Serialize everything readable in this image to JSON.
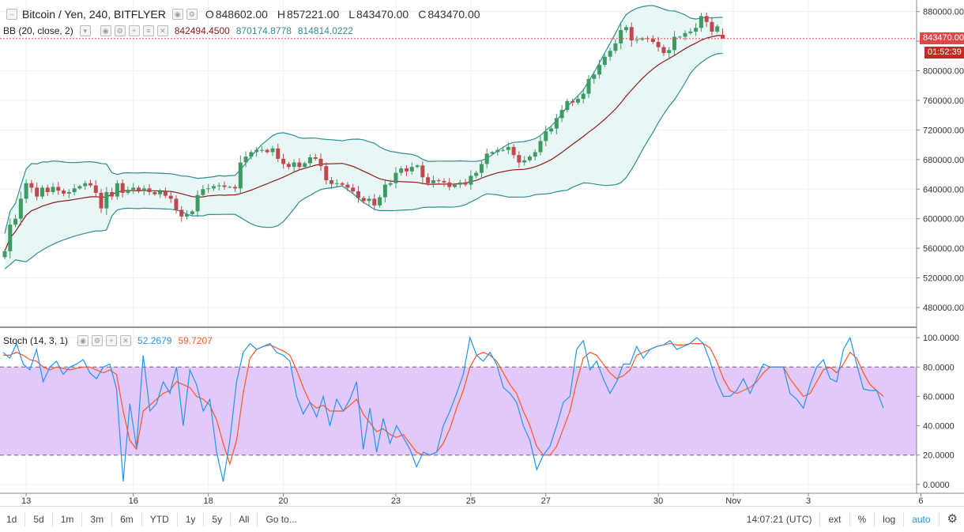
{
  "header": {
    "symbol": "Bitcoin / Yen, 240, BITFLYER",
    "ohlc": [
      {
        "k": "O",
        "v": "848602.00"
      },
      {
        "k": "H",
        "v": "857221.00"
      },
      {
        "k": "L",
        "v": "843470.00"
      },
      {
        "k": "C",
        "v": "843470.00"
      }
    ],
    "bb_label": "BB (20, close, 2)",
    "bb_values": [
      "842494.4500",
      "870174.8778",
      "814814.0222"
    ],
    "stoch_label": "Stoch (14, 3, 1)",
    "stoch_values": [
      "52.2679",
      "59.7207"
    ]
  },
  "price_tag": "843470.00",
  "countdown": "01:52:39",
  "toolbar": {
    "ranges": [
      "1d",
      "5d",
      "1m",
      "3m",
      "6m",
      "YTD",
      "1y",
      "5y",
      "All"
    ],
    "goto": "Go to...",
    "clock": "14:07:21 (UTC)",
    "options": [
      "ext",
      "%",
      "log",
      "auto"
    ]
  },
  "colors": {
    "up": "#3d9a63",
    "down": "#c0474d",
    "bb_band": "#2f8f8f",
    "bb_basis": "#8b1a1a",
    "band_fill": "#e9f6f6",
    "stoch_k": "#2196f3",
    "stoch_d": "#ff5722",
    "stoch_fill": "#e3c8fb",
    "tag_price": "#e04848",
    "tag_timer": "#c62828"
  },
  "chart_data": [
    {
      "type": "candlestick",
      "title": "Bitcoin / Yen, 240, BITFLYER",
      "ylim": [
        465000,
        885000
      ],
      "y_ticks": [
        480000,
        520000,
        560000,
        600000,
        640000,
        680000,
        720000,
        760000,
        800000,
        840000,
        880000
      ],
      "y_tick_labels": [
        "480000.00",
        "520000.00",
        "560000.00",
        "600000.00",
        "640000.00",
        "680000.00",
        "720000.00",
        "760000.00",
        "800000.00",
        "840000.00",
        "880000.00"
      ],
      "x_ticks": [
        {
          "i": 4,
          "label": "13"
        },
        {
          "i": 24,
          "label": "16"
        },
        {
          "i": 38,
          "label": "18"
        },
        {
          "i": 52,
          "label": "20"
        },
        {
          "i": 73,
          "label": "23"
        },
        {
          "i": 87,
          "label": "25"
        },
        {
          "i": 101,
          "label": "27"
        },
        {
          "i": 122,
          "label": "30"
        },
        {
          "i": 136,
          "label": "Nov"
        },
        {
          "i": 150,
          "label": "3"
        },
        {
          "i": 171,
          "label": "6"
        }
      ],
      "closes": [
        556000,
        592000,
        600000,
        627000,
        648000,
        642000,
        630000,
        642000,
        636000,
        643000,
        638000,
        634000,
        636000,
        641000,
        644000,
        648000,
        645000,
        635000,
        614000,
        636000,
        630000,
        648000,
        635000,
        639000,
        642000,
        638000,
        641000,
        636000,
        633000,
        637000,
        631000,
        627000,
        612000,
        603000,
        606000,
        610000,
        632000,
        640000,
        641000,
        644000,
        645000,
        643000,
        643000,
        641000,
        676000,
        684000,
        690000,
        693000,
        693000,
        690000,
        695000,
        681000,
        674000,
        670000,
        676000,
        670000,
        675000,
        683000,
        681000,
        671000,
        652000,
        647000,
        648000,
        646000,
        642000,
        637000,
        628000,
        624000,
        627000,
        618000,
        629000,
        646000,
        648000,
        662000,
        668000,
        664000,
        670000,
        672000,
        656000,
        648000,
        652000,
        651000,
        649000,
        643000,
        646000,
        649000,
        646000,
        658000,
        662000,
        674000,
        688000,
        690000,
        693000,
        693000,
        697000,
        686000,
        676000,
        679000,
        684000,
        690000,
        705000,
        718000,
        722000,
        736000,
        747000,
        759000,
        757000,
        762000,
        769000,
        789000,
        795000,
        808000,
        819000,
        827000,
        837000,
        855000,
        859000,
        841000,
        842000,
        844000,
        843000,
        839000,
        832000,
        824000,
        828000,
        846000,
        846000,
        851000,
        853000,
        858000,
        874000,
        866000,
        853000,
        860000,
        843470
      ],
      "series": [
        {
          "name": "BB (20, close, 2)",
          "values_note": "computed from closes: 20-period SMA ± 2 standard deviations"
        }
      ]
    },
    {
      "type": "line",
      "title": "Stoch (14, 3, 1)",
      "ylim": [
        -6,
        106
      ],
      "y_ticks": [
        0,
        20,
        40,
        60,
        80,
        100
      ],
      "y_tick_labels": [
        "0.0000",
        "20.0000",
        "40.0000",
        "60.0000",
        "80.0000",
        "100.0000"
      ],
      "bands": [
        20,
        80
      ],
      "series": [
        {
          "name": "%K",
          "values": [
            90,
            86,
            96,
            82,
            78,
            92,
            70,
            80,
            84,
            75,
            80,
            82,
            85,
            76,
            72,
            80,
            82,
            65,
            2,
            55,
            25,
            88,
            50,
            55,
            70,
            62,
            80,
            40,
            78,
            68,
            50,
            58,
            22,
            2,
            30,
            70,
            90,
            96,
            92,
            94,
            96,
            90,
            88,
            84,
            60,
            48,
            56,
            46,
            60,
            40,
            58,
            50,
            58,
            70,
            24,
            52,
            22,
            45,
            28,
            40,
            32,
            24,
            12,
            22,
            20,
            22,
            40,
            50,
            62,
            75,
            100,
            88,
            84,
            90,
            82,
            66,
            62,
            56,
            40,
            30,
            10,
            20,
            26,
            40,
            56,
            60,
            92,
            98,
            78,
            84,
            72,
            62,
            70,
            82,
            82,
            94,
            86,
            92,
            94,
            95,
            98,
            92,
            94,
            96,
            100,
            96,
            84,
            70,
            60,
            60,
            64,
            72,
            62,
            72,
            82,
            80,
            80,
            80,
            62,
            58,
            52,
            68,
            80,
            85,
            72,
            70,
            92,
            100,
            82,
            65,
            64,
            64,
            52
          ]
        },
        {
          "name": "%D",
          "values": [
            88,
            88,
            90,
            88,
            85,
            84,
            80,
            78,
            80,
            79,
            78,
            79,
            80,
            80,
            78,
            76,
            78,
            75,
            50,
            30,
            24,
            50,
            54,
            58,
            62,
            64,
            70,
            68,
            66,
            60,
            58,
            54,
            44,
            28,
            14,
            30,
            62,
            86,
            92,
            94,
            95,
            93,
            91,
            88,
            78,
            66,
            56,
            52,
            54,
            50,
            50,
            50,
            54,
            58,
            48,
            42,
            36,
            38,
            34,
            32,
            34,
            28,
            22,
            20,
            20,
            22,
            28,
            38,
            52,
            64,
            80,
            88,
            90,
            88,
            84,
            76,
            68,
            62,
            50,
            40,
            26,
            20,
            20,
            26,
            38,
            50,
            70,
            86,
            90,
            88,
            82,
            76,
            72,
            74,
            78,
            88,
            90,
            92,
            94,
            95,
            96,
            95,
            95,
            96,
            96,
            96,
            93,
            84,
            72,
            64,
            62,
            64,
            66,
            70,
            76,
            80,
            80,
            80,
            72,
            66,
            60,
            62,
            70,
            78,
            80,
            76,
            82,
            90,
            86,
            76,
            68,
            64,
            60
          ]
        }
      ]
    }
  ]
}
